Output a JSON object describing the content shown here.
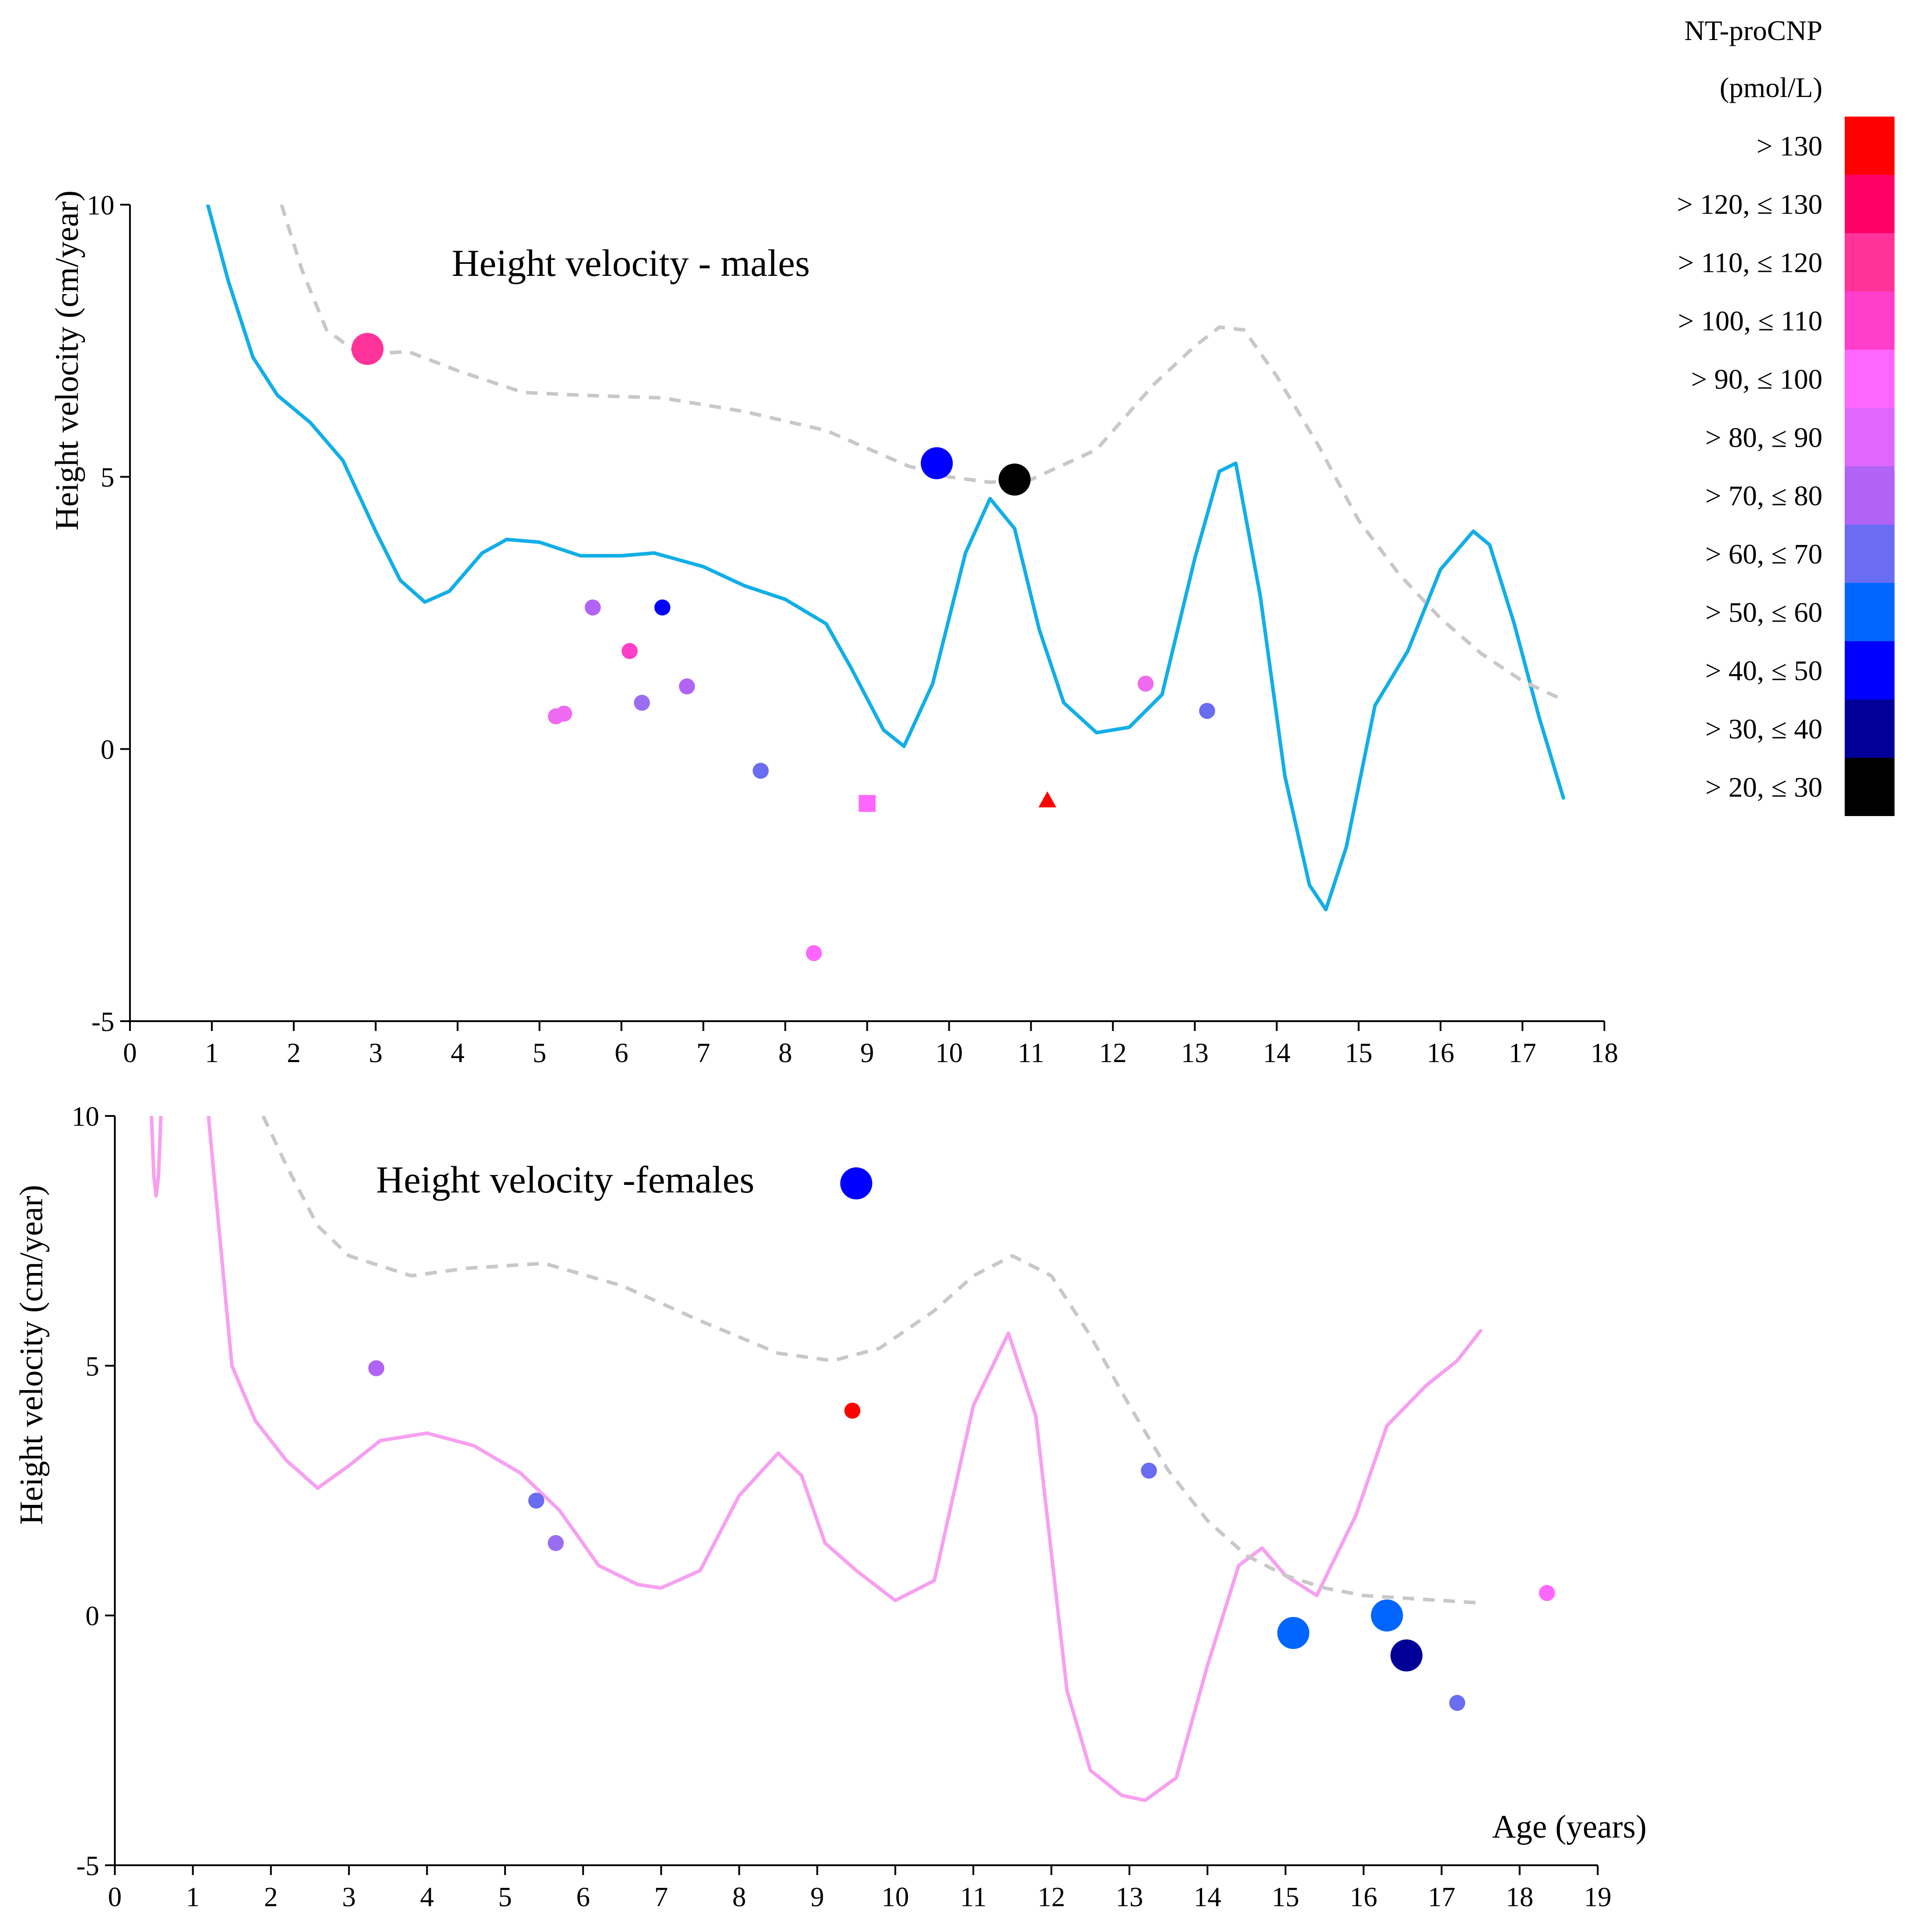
{
  "chart_data": [
    {
      "type": "scatter",
      "title": "Height velocity - males",
      "xlabel": "",
      "ylabel": "Height velocity (cm/year)",
      "xlim": [
        0,
        18
      ],
      "ylim": [
        -5,
        10
      ],
      "xticks": [
        "0",
        "1",
        "2",
        "3",
        "4",
        "5",
        "6",
        "7",
        "8",
        "9",
        "10",
        "11",
        "12",
        "13",
        "14",
        "15",
        "16",
        "17",
        "18"
      ],
      "yticks": [
        "-5",
        "0",
        "5",
        "10"
      ],
      "grid": false,
      "series": [
        {
          "name": "Height velocity curve (solid)",
          "kind": "line",
          "color": "#12aee7",
          "style": "solid",
          "points": [
            [
              0.95,
              10
            ],
            [
              1.2,
              8.6
            ],
            [
              1.5,
              7.2
            ],
            [
              1.8,
              6.5
            ],
            [
              2.2,
              6.0
            ],
            [
              2.6,
              5.3
            ],
            [
              3.0,
              4.0
            ],
            [
              3.3,
              3.1
            ],
            [
              3.6,
              2.7
            ],
            [
              3.9,
              2.9
            ],
            [
              4.3,
              3.6
            ],
            [
              4.6,
              3.85
            ],
            [
              5.0,
              3.8
            ],
            [
              5.5,
              3.55
            ],
            [
              6.0,
              3.55
            ],
            [
              6.4,
              3.6
            ],
            [
              7.0,
              3.35
            ],
            [
              7.5,
              3.0
            ],
            [
              8.0,
              2.75
            ],
            [
              8.5,
              2.3
            ],
            [
              8.8,
              1.5
            ],
            [
              9.2,
              0.35
            ],
            [
              9.45,
              0.05
            ],
            [
              9.8,
              1.2
            ],
            [
              10.2,
              3.6
            ],
            [
              10.5,
              4.6
            ],
            [
              10.8,
              4.05
            ],
            [
              11.1,
              2.2
            ],
            [
              11.4,
              0.85
            ],
            [
              11.8,
              0.3
            ],
            [
              12.2,
              0.4
            ],
            [
              12.6,
              1.0
            ],
            [
              13.0,
              3.5
            ],
            [
              13.3,
              5.1
            ],
            [
              13.5,
              5.25
            ],
            [
              13.8,
              2.8
            ],
            [
              14.1,
              -0.5
            ],
            [
              14.4,
              -2.5
            ],
            [
              14.6,
              -2.95
            ],
            [
              14.85,
              -1.8
            ],
            [
              15.2,
              0.8
            ],
            [
              15.6,
              1.8
            ],
            [
              16.0,
              3.3
            ],
            [
              16.4,
              4.0
            ],
            [
              16.6,
              3.75
            ],
            [
              16.9,
              2.3
            ],
            [
              17.2,
              0.6
            ],
            [
              17.5,
              -0.9
            ]
          ]
        },
        {
          "name": "Reference curve (dashed)",
          "kind": "line",
          "color": "#c8c8c8",
          "style": "dashed",
          "points": [
            [
              1.85,
              10
            ],
            [
              2.1,
              8.8
            ],
            [
              2.4,
              7.7
            ],
            [
              2.8,
              7.25
            ],
            [
              3.4,
              7.3
            ],
            [
              4.0,
              6.95
            ],
            [
              4.8,
              6.55
            ],
            [
              5.5,
              6.5
            ],
            [
              6.5,
              6.45
            ],
            [
              7.5,
              6.2
            ],
            [
              8.5,
              5.85
            ],
            [
              9.5,
              5.2
            ],
            [
              10.0,
              5.0
            ],
            [
              10.5,
              4.9
            ],
            [
              11.0,
              4.95
            ],
            [
              11.8,
              5.5
            ],
            [
              12.5,
              6.7
            ],
            [
              13.0,
              7.4
            ],
            [
              13.3,
              7.75
            ],
            [
              13.6,
              7.7
            ],
            [
              14.0,
              6.85
            ],
            [
              14.5,
              5.6
            ],
            [
              15.0,
              4.2
            ],
            [
              15.5,
              3.2
            ],
            [
              16.0,
              2.4
            ],
            [
              16.5,
              1.75
            ],
            [
              17.0,
              1.25
            ],
            [
              17.5,
              0.9
            ]
          ]
        },
        {
          "name": "Patients",
          "kind": "points",
          "points": [
            {
              "x": 2.9,
              "y": 7.35,
              "color": "#ff3399",
              "size": "large",
              "marker": "circle"
            },
            {
              "x": 9.85,
              "y": 5.25,
              "color": "#0000ff",
              "size": "large",
              "marker": "circle"
            },
            {
              "x": 10.8,
              "y": 4.95,
              "color": "#000000",
              "size": "large",
              "marker": "circle"
            },
            {
              "x": 5.65,
              "y": 2.6,
              "color": "#b063f5",
              "size": "small",
              "marker": "circle"
            },
            {
              "x": 6.5,
              "y": 2.6,
              "color": "#0000ff",
              "size": "small",
              "marker": "circle"
            },
            {
              "x": 6.1,
              "y": 1.8,
              "color": "#ff3ecb",
              "size": "small",
              "marker": "circle"
            },
            {
              "x": 6.8,
              "y": 1.15,
              "color": "#b063f5",
              "size": "small",
              "marker": "circle"
            },
            {
              "x": 6.25,
              "y": 0.85,
              "color": "#9a6df0",
              "size": "small",
              "marker": "circle"
            },
            {
              "x": 5.2,
              "y": 0.6,
              "color": "#ee6af0",
              "size": "small",
              "marker": "circle"
            },
            {
              "x": 5.3,
              "y": 0.65,
              "color": "#ee6af0",
              "size": "small",
              "marker": "circle"
            },
            {
              "x": 12.4,
              "y": 1.2,
              "color": "#ee6af0",
              "size": "small",
              "marker": "circle"
            },
            {
              "x": 13.15,
              "y": 0.7,
              "color": "#6a6cf2",
              "size": "small",
              "marker": "circle"
            },
            {
              "x": 7.7,
              "y": -0.4,
              "color": "#6a6cf2",
              "size": "small",
              "marker": "circle"
            },
            {
              "x": 9.0,
              "y": -1.0,
              "color": "#ff66ff",
              "size": "small",
              "marker": "square"
            },
            {
              "x": 11.2,
              "y": -0.95,
              "color": "#ff0000",
              "size": "small",
              "marker": "triangle"
            },
            {
              "x": 8.35,
              "y": -3.75,
              "color": "#ff66ff",
              "size": "small",
              "marker": "circle"
            }
          ]
        }
      ]
    },
    {
      "type": "scatter",
      "title": "Height velocity -females",
      "xlabel": "Age (years)",
      "ylabel": "Height velocity (cm/year)",
      "xlim": [
        0,
        19
      ],
      "ylim": [
        -5,
        10
      ],
      "xticks": [
        "0",
        "1",
        "2",
        "3",
        "4",
        "5",
        "6",
        "7",
        "8",
        "9",
        "10",
        "11",
        "12",
        "13",
        "14",
        "15",
        "16",
        "17",
        "18",
        "19"
      ],
      "yticks": [
        "-5",
        "0",
        "5",
        "10"
      ],
      "grid": false,
      "series": [
        {
          "name": "Height velocity curve (solid)",
          "kind": "line",
          "color": "#f7a0f0",
          "style": "solid",
          "points": [
            [
              1.2,
              10
            ],
            [
              1.35,
              7.5
            ],
            [
              1.5,
              5.0
            ],
            [
              1.8,
              3.9
            ],
            [
              2.2,
              3.1
            ],
            [
              2.6,
              2.55
            ],
            [
              3.0,
              3.0
            ],
            [
              3.4,
              3.5
            ],
            [
              4.0,
              3.65
            ],
            [
              4.6,
              3.4
            ],
            [
              5.2,
              2.85
            ],
            [
              5.7,
              2.1
            ],
            [
              6.2,
              1.0
            ],
            [
              6.7,
              0.62
            ],
            [
              7.0,
              0.55
            ],
            [
              7.5,
              0.9
            ],
            [
              8.0,
              2.4
            ],
            [
              8.5,
              3.25
            ],
            [
              8.8,
              2.8
            ],
            [
              9.1,
              1.45
            ],
            [
              9.5,
              0.9
            ],
            [
              10.0,
              0.3
            ],
            [
              10.5,
              0.7
            ],
            [
              11.0,
              4.2
            ],
            [
              11.45,
              5.65
            ],
            [
              11.8,
              4.0
            ],
            [
              12.2,
              -1.5
            ],
            [
              12.5,
              -3.1
            ],
            [
              12.9,
              -3.6
            ],
            [
              13.2,
              -3.7
            ],
            [
              13.6,
              -3.25
            ],
            [
              14.0,
              -1.0
            ],
            [
              14.4,
              1.0
            ],
            [
              14.7,
              1.35
            ],
            [
              15.0,
              0.8
            ],
            [
              15.4,
              0.4
            ],
            [
              15.9,
              2.0
            ],
            [
              16.3,
              3.8
            ],
            [
              16.8,
              4.6
            ],
            [
              17.2,
              5.1
            ],
            [
              17.5,
              5.7
            ]
          ]
        },
        {
          "name": "Solid curve (left spike)",
          "kind": "line",
          "color": "#f7a0f0",
          "style": "solid",
          "points": [
            [
              0.47,
              10
            ],
            [
              0.5,
              8.8
            ],
            [
              0.53,
              8.4
            ],
            [
              0.56,
              8.8
            ],
            [
              0.59,
              10
            ]
          ]
        },
        {
          "name": "Reference curve (dashed)",
          "kind": "line",
          "color": "#c8c8c8",
          "style": "dashed",
          "points": [
            [
              1.9,
              10
            ],
            [
              2.2,
              9.0
            ],
            [
              2.6,
              7.8
            ],
            [
              3.0,
              7.2
            ],
            [
              3.8,
              6.8
            ],
            [
              4.5,
              6.95
            ],
            [
              5.5,
              7.05
            ],
            [
              6.5,
              6.6
            ],
            [
              7.5,
              5.9
            ],
            [
              8.5,
              5.25
            ],
            [
              9.2,
              5.1
            ],
            [
              9.8,
              5.35
            ],
            [
              10.5,
              6.1
            ],
            [
              11.0,
              6.8
            ],
            [
              11.5,
              7.2
            ],
            [
              12.0,
              6.8
            ],
            [
              12.5,
              5.6
            ],
            [
              13.0,
              4.2
            ],
            [
              13.5,
              2.9
            ],
            [
              14.0,
              1.9
            ],
            [
              14.5,
              1.2
            ],
            [
              15.0,
              0.8
            ],
            [
              15.5,
              0.55
            ],
            [
              16.0,
              0.4
            ],
            [
              16.5,
              0.35
            ],
            [
              17.0,
              0.3
            ],
            [
              17.5,
              0.25
            ]
          ]
        },
        {
          "name": "Patients",
          "kind": "points",
          "points": [
            {
              "x": 9.5,
              "y": 8.65,
              "color": "#0000ff",
              "size": "large",
              "marker": "circle"
            },
            {
              "x": 3.35,
              "y": 4.95,
              "color": "#b063f5",
              "size": "small",
              "marker": "circle"
            },
            {
              "x": 9.45,
              "y": 4.1,
              "color": "#ff0000",
              "size": "small",
              "marker": "circle"
            },
            {
              "x": 5.4,
              "y": 2.3,
              "color": "#6a6cf2",
              "size": "small",
              "marker": "circle"
            },
            {
              "x": 5.65,
              "y": 1.45,
              "color": "#9a6df0",
              "size": "small",
              "marker": "circle"
            },
            {
              "x": 13.25,
              "y": 2.9,
              "color": "#6a6cf2",
              "size": "small",
              "marker": "circle"
            },
            {
              "x": 15.1,
              "y": -0.35,
              "color": "#0066ff",
              "size": "large",
              "marker": "circle"
            },
            {
              "x": 16.3,
              "y": 0.0,
              "color": "#0066ff",
              "size": "large",
              "marker": "circle"
            },
            {
              "x": 16.55,
              "y": -0.8,
              "color": "#000099",
              "size": "large",
              "marker": "circle"
            },
            {
              "x": 17.2,
              "y": -1.75,
              "color": "#6a6cf2",
              "size": "small",
              "marker": "circle"
            },
            {
              "x": 18.35,
              "y": 0.45,
              "color": "#ff66ff",
              "size": "small",
              "marker": "circle"
            }
          ]
        }
      ]
    }
  ],
  "legend": {
    "title_line1": "NT-proCNP",
    "title_line2": "(pmol/L)",
    "placement": "top-right",
    "items": [
      {
        "label": "> 130",
        "color": "#ff0000"
      },
      {
        "label": "> 120, ≤ 130",
        "color": "#ff0066"
      },
      {
        "label": "> 110, ≤ 120",
        "color": "#ff3399"
      },
      {
        "label": "> 100, ≤ 110",
        "color": "#ff3ecb"
      },
      {
        "label": "> 90, ≤ 100",
        "color": "#ff66ff"
      },
      {
        "label": "> 80, ≤ 90",
        "color": "#e066ff"
      },
      {
        "label": "> 70, ≤ 80",
        "color": "#b063f5"
      },
      {
        "label": "> 60, ≤ 70",
        "color": "#6a6cf2"
      },
      {
        "label": "> 50, ≤ 60",
        "color": "#0066ff"
      },
      {
        "label": "> 40, ≤ 50",
        "color": "#0000ff"
      },
      {
        "label": "> 30, ≤ 40",
        "color": "#000099"
      },
      {
        "label": "> 20, ≤ 30",
        "color": "#000000"
      }
    ]
  }
}
